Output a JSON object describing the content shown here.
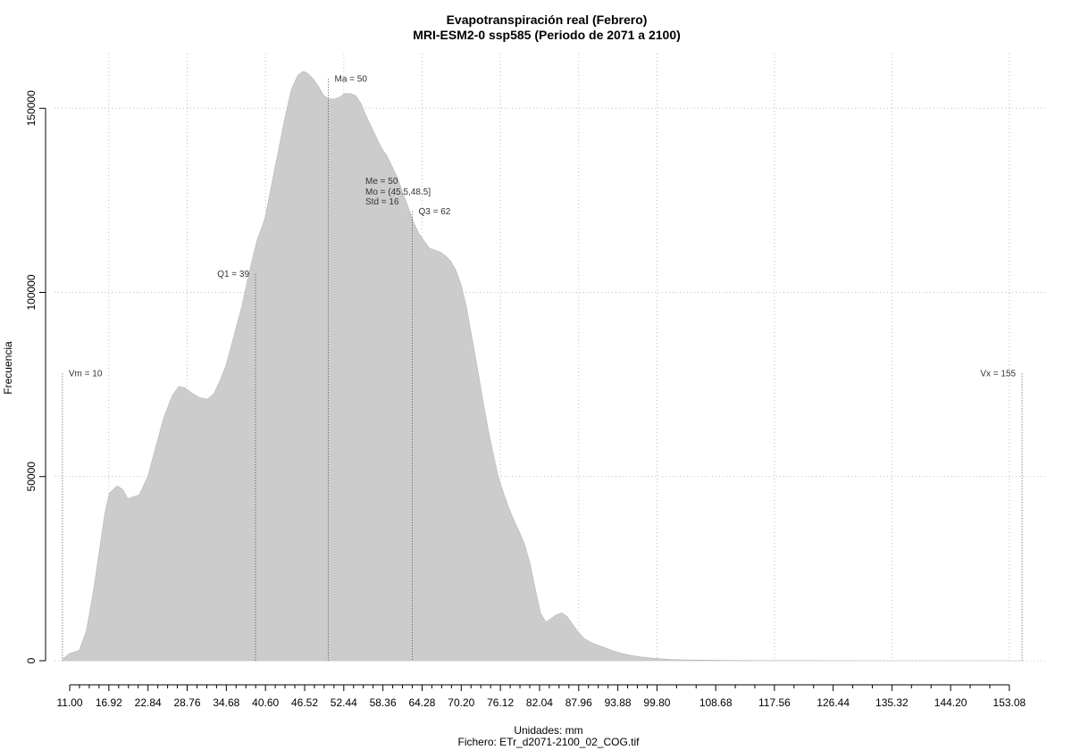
{
  "chart_data": {
    "type": "area",
    "title": "Evapotranspiración real (Febrero)",
    "subtitle": "MRI-ESM2-0 ssp585 (Periodo de 2071 a 2100)",
    "xlabel": "Unidades: mm",
    "ylabel": "Frecuencia",
    "file_label": "Fichero: ETr_d2071-2100_02_COG.tif",
    "x_major_ticks": [
      11.0,
      16.92,
      22.84,
      28.76,
      34.68,
      40.6,
      46.52,
      52.44,
      58.36,
      64.28,
      70.2,
      76.12,
      82.04,
      87.96,
      93.88,
      99.8,
      108.68,
      117.56,
      126.44,
      135.32,
      144.2,
      153.08
    ],
    "x_tick_labels": [
      "11.00",
      "16.92",
      "22.84",
      "28.76",
      "34.68",
      "40.60",
      "46.52",
      "52.44",
      "58.36",
      "64.28",
      "70.20",
      "76.12",
      "82.04",
      "87.96",
      "93.88",
      "99.80",
      "108.68",
      "117.56",
      "126.44",
      "135.32",
      "144.20",
      "153.08"
    ],
    "x_minor_ticks": [
      12.48,
      13.96,
      15.44,
      18.4,
      19.88,
      21.36,
      24.32,
      25.8,
      27.28,
      30.24,
      31.72,
      33.2,
      36.16,
      37.64,
      39.12,
      42.08,
      43.56,
      45.04,
      48.0,
      49.48,
      50.96,
      53.92,
      55.4,
      56.88,
      59.84,
      61.32,
      62.8,
      65.76,
      67.24,
      68.72,
      71.68,
      73.16,
      74.64,
      77.6,
      79.08,
      80.56,
      83.52,
      85.0,
      86.48,
      89.44,
      90.92,
      92.4,
      95.36,
      96.84,
      98.32,
      102.76,
      105.72,
      111.64,
      114.6,
      120.52,
      123.48,
      129.4,
      132.36,
      138.28,
      141.24,
      147.16,
      150.12
    ],
    "xlim": [
      8.7,
      158.5
    ],
    "ylim": [
      0,
      160000
    ],
    "y_ticks": [
      0,
      50000,
      100000,
      150000
    ],
    "y_tick_labels": [
      "0",
      "50000",
      "100000",
      "150000"
    ],
    "x_grid": [
      16.92,
      28.76,
      40.6,
      52.44,
      64.28,
      76.12,
      87.96,
      99.8,
      117.56,
      135.32,
      153.08
    ],
    "grid": true,
    "fill_color": "#cccccc",
    "series": [
      {
        "x": [
          10.0,
          11.0,
          12.0,
          12.5,
          13.5,
          14.5,
          15.5,
          16.3,
          17.0,
          18.2,
          19.0,
          19.8,
          20.6,
          21.5,
          22.8,
          24.0,
          25.2,
          26.5,
          27.5,
          28.5,
          29.6,
          30.6,
          31.8,
          32.8,
          33.7,
          34.6,
          35.8,
          37.0,
          38.2,
          39.3,
          40.5,
          41.6,
          42.6,
          43.6,
          44.5,
          45.5,
          46.3,
          47.0,
          47.8,
          48.6,
          49.4,
          50.2,
          51.0,
          51.8,
          52.6,
          53.4,
          54.2,
          55.0,
          55.8,
          56.6,
          57.4,
          58.2,
          59.0,
          59.8,
          60.6,
          61.4,
          62.2,
          63.0,
          63.8,
          64.6,
          65.4,
          66.2,
          67.0,
          67.8,
          68.6,
          69.4,
          70.2,
          71.0,
          71.8,
          72.6,
          73.4,
          74.2,
          75.0,
          75.8,
          76.6,
          77.4,
          78.2,
          79.0,
          79.8,
          80.6,
          81.4,
          82.2,
          83.0,
          83.8,
          84.6,
          85.4,
          86.2,
          87.0,
          87.8,
          88.8,
          90.0,
          91.5,
          93.0,
          94.5,
          96.0,
          97.5,
          99.0,
          100.5,
          102.0,
          104.0,
          106.0,
          108.0,
          110.0,
          115.0,
          125.0,
          135.0,
          145.0,
          155.0
        ],
        "y": [
          500,
          2000,
          2500,
          3000,
          8000,
          18000,
          30000,
          40000,
          45500,
          47500,
          46500,
          44000,
          44500,
          45000,
          50000,
          58000,
          66000,
          72000,
          74500,
          74000,
          72500,
          71500,
          71000,
          72500,
          76000,
          80000,
          88000,
          96000,
          106000,
          114000,
          120000,
          130000,
          139000,
          148000,
          155000,
          159000,
          160000,
          159500,
          158000,
          156000,
          153500,
          152500,
          152500,
          153000,
          154000,
          154000,
          153500,
          151500,
          148000,
          145000,
          142000,
          139000,
          137000,
          134000,
          131000,
          127000,
          123000,
          119000,
          116000,
          114000,
          112000,
          111500,
          111000,
          110000,
          108500,
          106000,
          102000,
          96000,
          88000,
          80000,
          71500,
          63500,
          56500,
          50000,
          45500,
          41500,
          38000,
          35000,
          31500,
          26500,
          19500,
          13000,
          10500,
          11500,
          12500,
          13000,
          12000,
          10000,
          8000,
          6000,
          4800,
          3800,
          2800,
          2000,
          1400,
          1000,
          700,
          500,
          350,
          250,
          200,
          150,
          100,
          50,
          20,
          10,
          5,
          0
        ]
      }
    ],
    "annotations": [
      {
        "label": "Vm = 10",
        "x": 9.9,
        "y_top": 78000,
        "label_side": "right",
        "style": "dotted"
      },
      {
        "label": "Q1 = 39",
        "x": 39.1,
        "y_top": 105000,
        "label_side": "left",
        "style": "dotted"
      },
      {
        "label": "Ma = 50",
        "x": 50.1,
        "y_top": 158000,
        "label_side": "right",
        "style": "dotted"
      },
      {
        "label": "Q3 = 62",
        "x": 62.8,
        "y_top": 122000,
        "label_side": "right",
        "style": "dotted"
      },
      {
        "label": "Vx = 155",
        "x": 155.0,
        "y_top": 78000,
        "label_side": "left",
        "style": "dotted"
      }
    ],
    "stats_block": [
      "Me = 50",
      "Mo = (45.5,48.5]",
      "Std = 16"
    ]
  }
}
